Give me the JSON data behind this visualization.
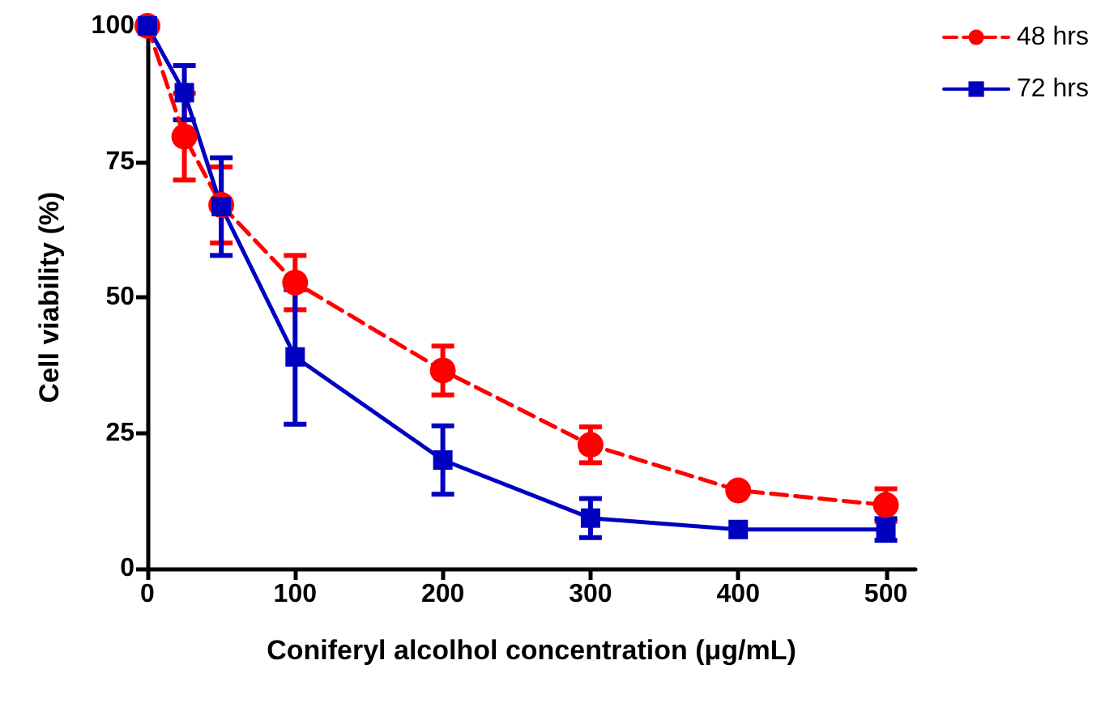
{
  "chart_data": {
    "type": "line",
    "xlabel": "Coniferyl alcolhol concentration (μg/mL)",
    "ylabel": "Cell viability (%)",
    "xlim": [
      0,
      520
    ],
    "xticks": [
      0,
      100,
      200,
      300,
      400,
      500
    ],
    "ylim": [
      0,
      100
    ],
    "yticks": [
      0,
      25,
      50,
      75,
      100
    ],
    "grid": false,
    "legend": "top right",
    "series": [
      {
        "name": "48 hrs",
        "color": "#ff0000",
        "marker": "circle",
        "line_style": "dashed",
        "x": [
          0,
          25,
          50,
          100,
          200,
          300,
          400,
          500
        ],
        "values": [
          100,
          79.6,
          67,
          52.7,
          36.5,
          22.8,
          14.4,
          11.7
        ],
        "errors": [
          null,
          8,
          7,
          5,
          4.5,
          3.3,
          null,
          3
        ]
      },
      {
        "name": "72 hrs",
        "color": "#0000c0",
        "marker": "square",
        "line_style": "solid",
        "x": [
          0,
          25,
          50,
          100,
          200,
          300,
          400,
          500
        ],
        "values": [
          100,
          87.7,
          66.7,
          39,
          20,
          9.3,
          7.2,
          7.2
        ],
        "errors": [
          null,
          5,
          9,
          12.4,
          6.3,
          3.6,
          null,
          2
        ]
      }
    ]
  }
}
